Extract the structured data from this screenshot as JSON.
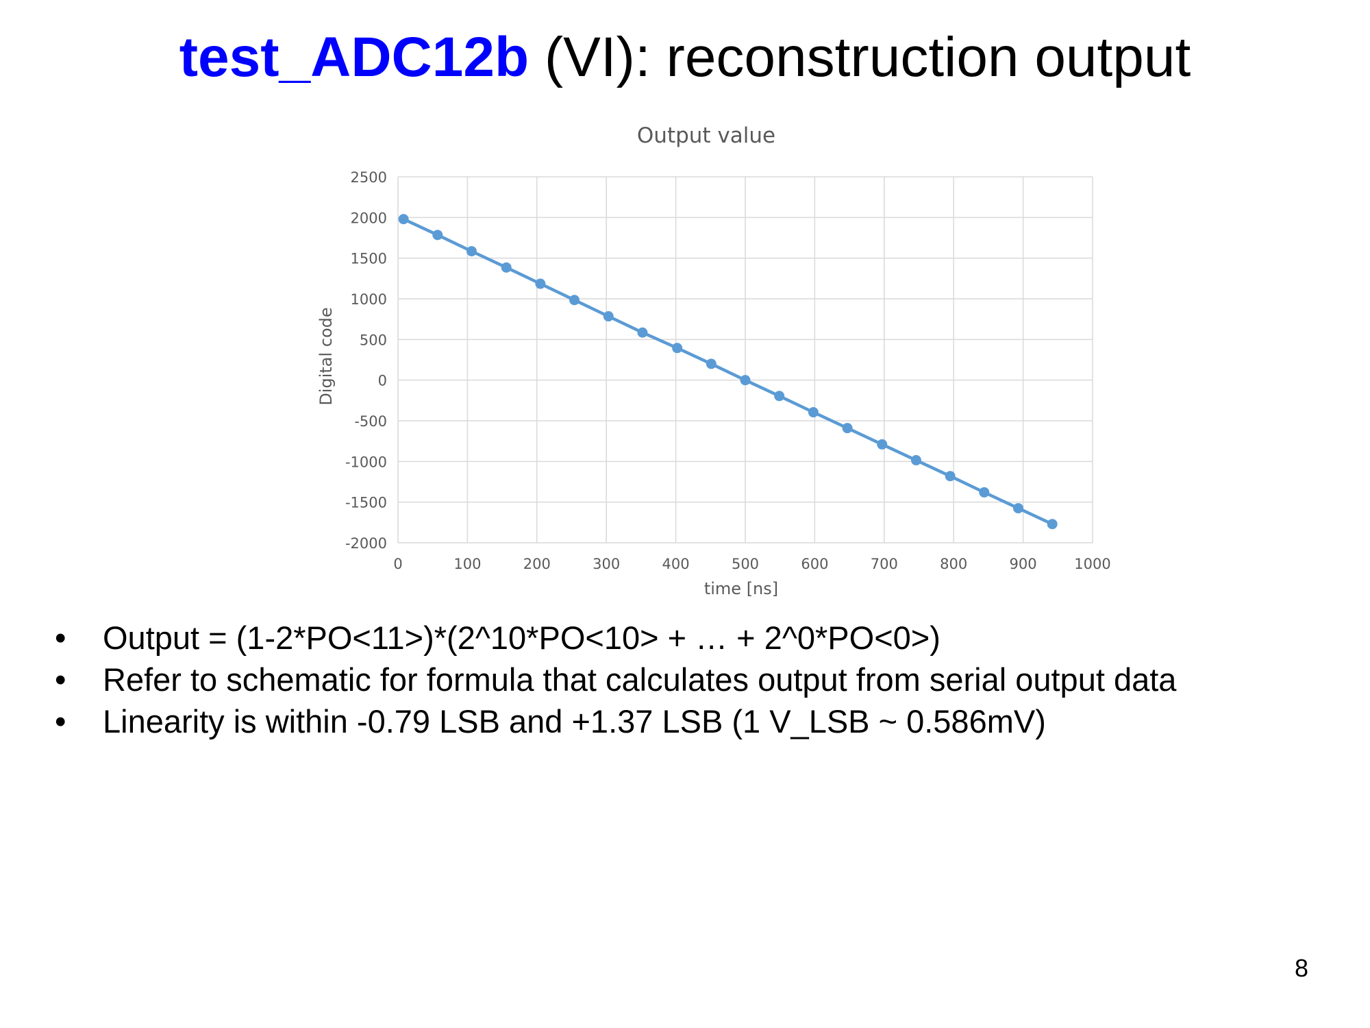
{
  "slide": {
    "title_accent": "test_ADC12b",
    "title_rest": " (VI): reconstruction output",
    "page_number": "8",
    "accent_color": "#0000ff"
  },
  "bullets": [
    {
      "marker": "•",
      "text": "Output = (1-2*PO<11>)*(2^10*PO<10> + … + 2^0*PO<0>)"
    },
    {
      "marker": "•",
      "text": "Refer to schematic for formula that calculates output from serial output data"
    },
    {
      "marker": "•",
      "text": "Linearity is within -0.79 LSB and +1.37 LSB (1 V_LSB ~ 0.586mV)"
    }
  ],
  "chart_data": {
    "type": "line",
    "title": "Output value",
    "xlabel": "time [ns]",
    "ylabel": "Digital code",
    "xlim": [
      0,
      1000
    ],
    "ylim": [
      -2000,
      2500
    ],
    "x_ticks": [
      0,
      100,
      200,
      300,
      400,
      500,
      600,
      700,
      800,
      900,
      1000
    ],
    "y_ticks": [
      -2000,
      -1500,
      -1000,
      -500,
      0,
      500,
      1000,
      1500,
      2000,
      2500
    ],
    "grid": true,
    "legend": "none",
    "series": [
      {
        "color": "#5b9bd5",
        "x": [
          8,
          57,
          106,
          156,
          205,
          254,
          303,
          352,
          402,
          451,
          500,
          549,
          598,
          647,
          697,
          746,
          795,
          844,
          893,
          942
        ],
        "y": [
          1980,
          1785,
          1585,
          1385,
          1185,
          985,
          785,
          585,
          395,
          200,
          0,
          -195,
          -395,
          -590,
          -790,
          -985,
          -1180,
          -1380,
          -1575,
          -1770
        ]
      }
    ]
  }
}
